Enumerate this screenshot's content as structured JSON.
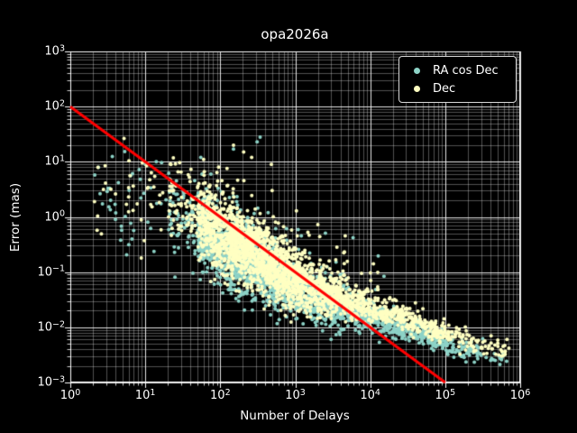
{
  "chart_data": {
    "type": "scatter",
    "title": "opa2026a",
    "xlabel": "Number of Delays",
    "ylabel": "Error (mas)",
    "xscale": "log",
    "yscale": "log",
    "xlim": [
      1,
      1000000
    ],
    "ylim": [
      0.001,
      1000
    ],
    "background": "#000000",
    "text_color": "#ffffff",
    "x_ticks": [
      {
        "base": "10",
        "exp": "0"
      },
      {
        "base": "10",
        "exp": "1"
      },
      {
        "base": "10",
        "exp": "2"
      },
      {
        "base": "10",
        "exp": "3"
      },
      {
        "base": "10",
        "exp": "4"
      },
      {
        "base": "10",
        "exp": "5"
      },
      {
        "base": "10",
        "exp": "6"
      }
    ],
    "y_ticks": [
      {
        "base": "10",
        "exp": "3"
      },
      {
        "base": "10",
        "exp": "2"
      },
      {
        "base": "10",
        "exp": "1"
      },
      {
        "base": "10",
        "exp": "0"
      },
      {
        "base": "10",
        "exp": "−1"
      },
      {
        "base": "10",
        "exp": "−2"
      },
      {
        "base": "10",
        "exp": "−3"
      }
    ],
    "grid": {
      "major": true,
      "minor": true,
      "color": "#ffffff",
      "major_alpha": 0.9,
      "minor_alpha": 0.45,
      "legend_position": "upper right"
    },
    "legend": {
      "entries": [
        {
          "label": "RA cos Dec",
          "color": "#8dd3c7"
        },
        {
          "label": "Dec",
          "color": "#ffffc2"
        }
      ]
    },
    "fit_line": {
      "from": [
        1,
        100
      ],
      "to": [
        100000,
        0.001
      ],
      "color": "#ff0000",
      "width": 3
    },
    "band_model": {
      "segments": [
        [
          0.3,
          1.3,
          0.012
        ],
        [
          1.3,
          1.7,
          0.03
        ],
        [
          1.7,
          2.1,
          0.14
        ],
        [
          2.1,
          2.6,
          0.24
        ],
        [
          2.6,
          3.1,
          0.21
        ],
        [
          3.1,
          3.6,
          0.13
        ],
        [
          3.6,
          4.1,
          0.09
        ],
        [
          4.1,
          4.6,
          0.065
        ],
        [
          4.6,
          5.05,
          0.045
        ],
        [
          5.05,
          5.45,
          0.02
        ],
        [
          5.45,
          5.85,
          0.008
        ]
      ],
      "center_anchors": [
        [
          0.3,
          0.55
        ],
        [
          0.9,
          0.4
        ],
        [
          1.6,
          0.08
        ],
        [
          2.0,
          -0.33
        ],
        [
          2.5,
          -0.68
        ],
        [
          3.0,
          -1.15
        ],
        [
          3.5,
          -1.4
        ],
        [
          4.0,
          -1.64
        ],
        [
          4.5,
          -1.88
        ],
        [
          5.0,
          -2.1
        ],
        [
          5.4,
          -2.28
        ],
        [
          5.85,
          -2.45
        ]
      ],
      "sigma_anchors": [
        [
          0.3,
          0.5
        ],
        [
          0.9,
          0.48
        ],
        [
          1.6,
          0.36
        ],
        [
          2.0,
          0.33
        ],
        [
          2.5,
          0.3
        ],
        [
          3.0,
          0.24
        ],
        [
          3.5,
          0.19
        ],
        [
          4.0,
          0.14
        ],
        [
          4.5,
          0.11
        ],
        [
          5.0,
          0.1
        ],
        [
          5.85,
          0.09
        ]
      ]
    },
    "series": [
      {
        "name": "RA cos Dec",
        "color": "#8dd3c7",
        "marker_radius": 2,
        "n_points": 2500,
        "seed": 1337,
        "center_offset": -0.18,
        "halo": {
          "prob": 0.045,
          "lift": 0.15,
          "scale": 0.45,
          "max_lx": 4.2
        },
        "outliers": [
          [
            310,
            23
          ],
          [
            340,
            28
          ],
          [
            10,
            9
          ],
          [
            14,
            10
          ],
          [
            55,
            12
          ],
          [
            150,
            17
          ],
          [
            75,
            6
          ],
          [
            4,
            0.9
          ],
          [
            6.4,
            5.6
          ],
          [
            3.1,
            2.9
          ],
          [
            7,
            0.57
          ],
          [
            26,
            4.5
          ]
        ]
      },
      {
        "name": "Dec",
        "color": "#ffffc2",
        "marker_radius": 2,
        "n_points": 2500,
        "seed": 42,
        "center_offset": 0,
        "halo": {
          "prob": 0.055,
          "lift": 0.15,
          "scale": 0.5,
          "max_lx": 4.2
        },
        "outliers": [
          [
            205,
            15
          ],
          [
            262,
            12
          ],
          [
            60,
            11
          ],
          [
            95,
            8
          ],
          [
            30,
            6.5
          ],
          [
            13,
            3.5
          ],
          [
            6,
            2.3
          ],
          [
            2.1,
            1.9
          ],
          [
            5.6,
            1.7
          ],
          [
            150,
            20
          ],
          [
            480,
            9
          ],
          [
            22,
            9
          ],
          [
            6,
            3.4
          ]
        ]
      }
    ]
  }
}
